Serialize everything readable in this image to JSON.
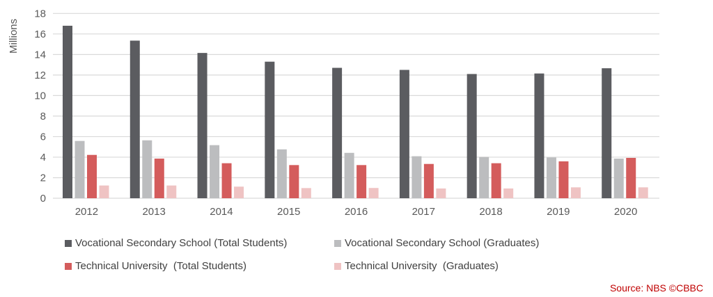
{
  "chart_data": {
    "type": "bar",
    "title": "",
    "xlabel": "",
    "ylabel": "Millions",
    "ylim": [
      0,
      18
    ],
    "yticks": [
      0,
      2,
      4,
      6,
      8,
      10,
      12,
      14,
      16,
      18
    ],
    "grid": true,
    "legend_placement": "bottom",
    "categories": [
      "2012",
      "2013",
      "2014",
      "2015",
      "2016",
      "2017",
      "2018",
      "2019",
      "2020"
    ],
    "series": [
      {
        "name": "Vocational Secondary School (Total Students)",
        "color": "#5b5c60",
        "values": [
          16.8,
          15.35,
          14.15,
          13.3,
          12.7,
          12.5,
          12.1,
          12.15,
          12.66
        ]
      },
      {
        "name": "Vocational Secondary School (Graduates)",
        "color": "#bcbdbf",
        "values": [
          5.58,
          5.64,
          5.17,
          4.76,
          4.42,
          4.09,
          4.02,
          3.97,
          3.86
        ]
      },
      {
        "name": "Technical University  (Total Students)",
        "color": "#d45c5c",
        "values": [
          4.22,
          3.86,
          3.41,
          3.23,
          3.23,
          3.34,
          3.41,
          3.59,
          3.93
        ]
      },
      {
        "name": "Technical University  (Graduates)",
        "color": "#efc3c3",
        "values": [
          1.24,
          1.24,
          1.13,
          0.99,
          1.0,
          0.95,
          0.95,
          1.06,
          1.06
        ]
      }
    ]
  },
  "source": "Source: NBS ©CBBC"
}
